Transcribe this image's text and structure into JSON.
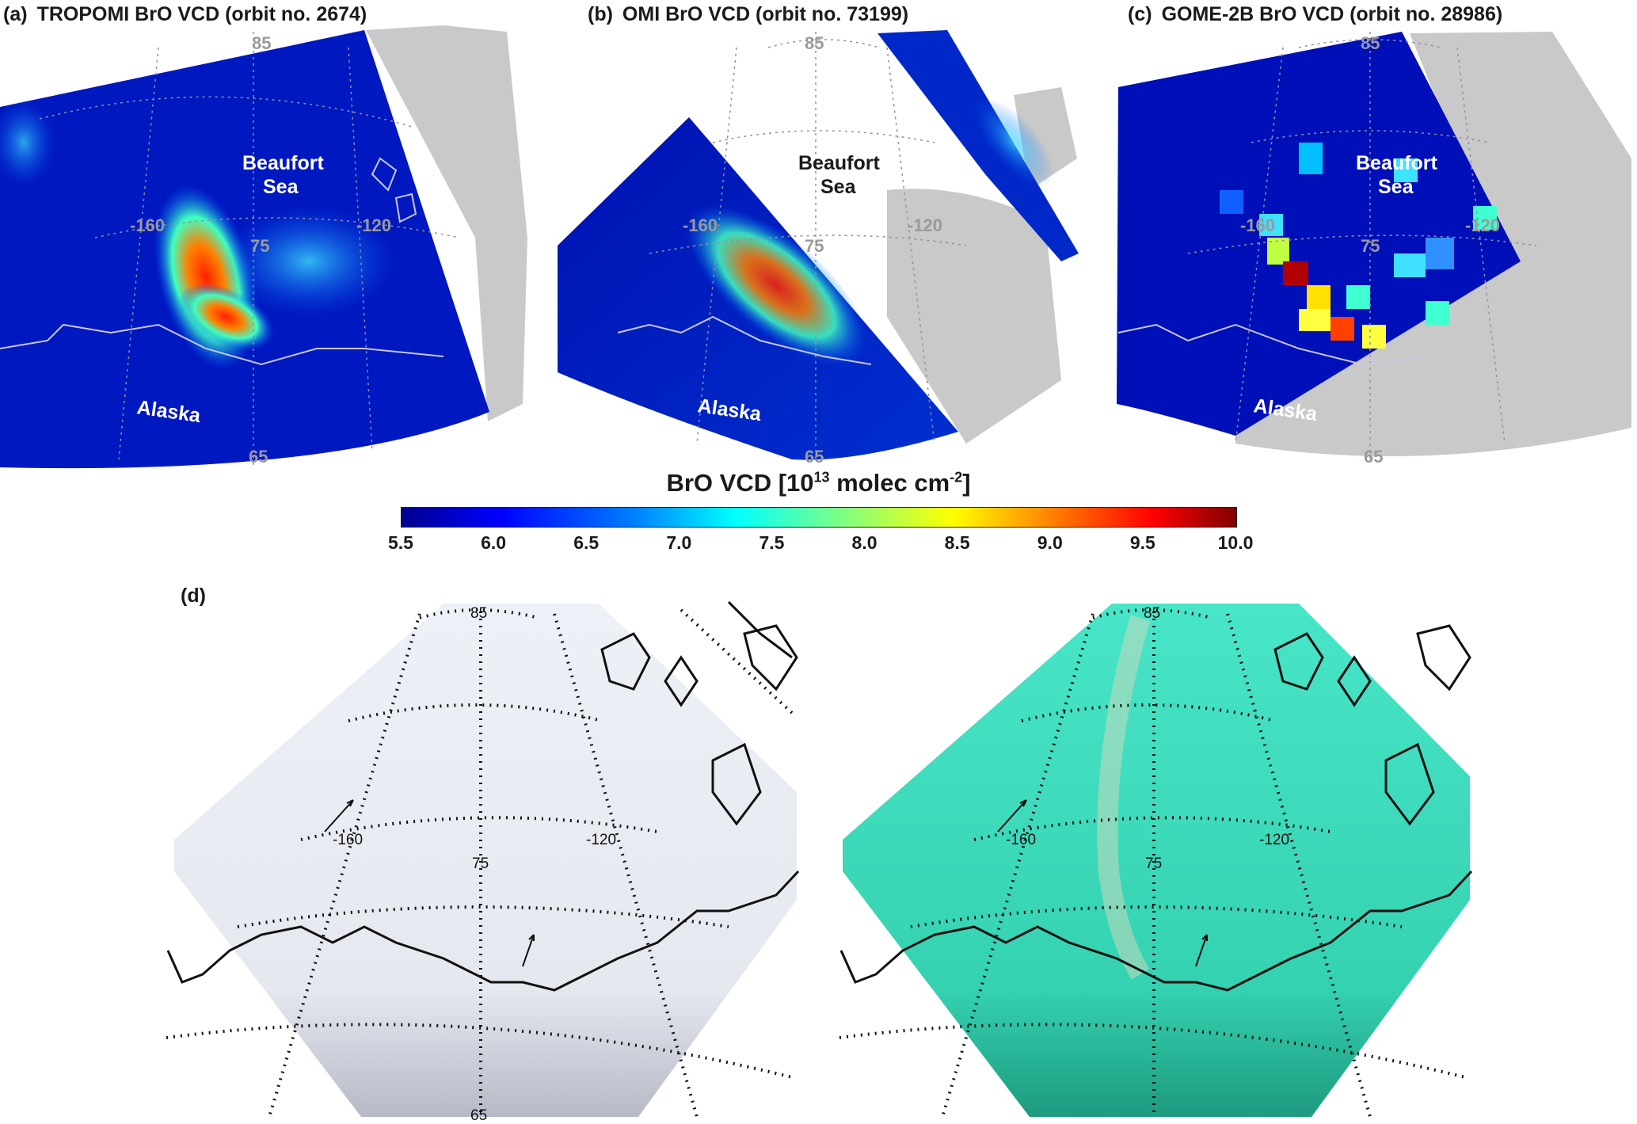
{
  "panels": [
    {
      "tag": "(a)",
      "title": "TROPOMI BrO VCD (orbit no. 2674)"
    },
    {
      "tag": "(b)",
      "title": "OMI BrO VCD (orbit no. 73199)"
    },
    {
      "tag": "(c)",
      "title": "GOME-2B BrO VCD (orbit no. 28986)"
    }
  ],
  "map_labels": {
    "sea_line1": "Beaufort",
    "sea_line2": "Sea",
    "land": "Alaska",
    "lat_85": "85",
    "lat_75": "75",
    "lat_65": "65",
    "lon_160": "-160",
    "lon_120": "-120"
  },
  "colorbar": {
    "title_prefix": "BrO VCD [10",
    "title_exp": "13",
    "title_units": " molec cm",
    "title_unit_exp": "-2",
    "title_suffix": "]",
    "ticks": [
      "5.5",
      "6.0",
      "6.5",
      "7.0",
      "7.5",
      "8.0",
      "8.5",
      "9.0",
      "9.5",
      "10.0"
    ],
    "min": 5.5,
    "max": 10.0,
    "colormap": "jet"
  },
  "panel_d": {
    "tag": "(d)"
  },
  "colors": {
    "land_gray": "#c9c9c9",
    "ocean_dark": "#00008f",
    "satellite_ice": "#eeeef6",
    "falsecolor_ice": "#3fe0c0"
  }
}
